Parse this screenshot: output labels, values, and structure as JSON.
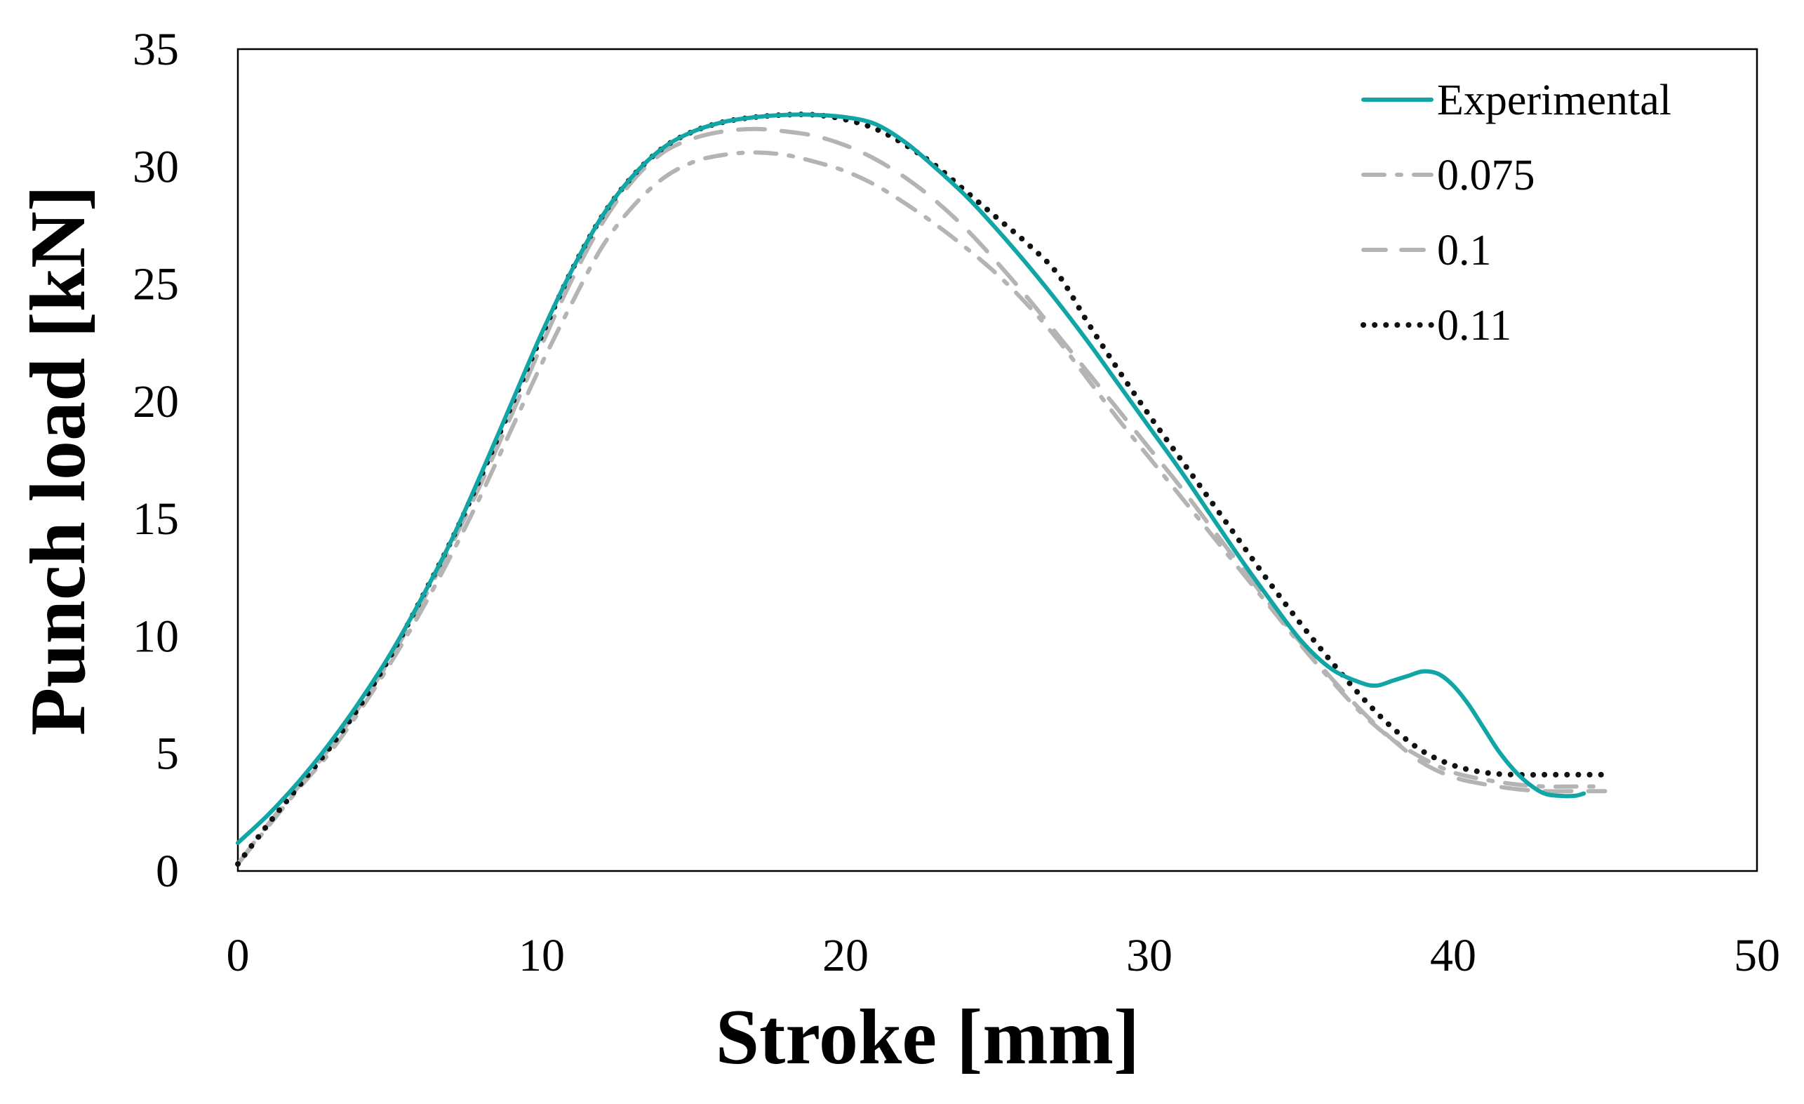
{
  "chart_data": {
    "type": "line",
    "title": "",
    "xlabel": "Stroke [mm]",
    "ylabel": "Punch load [kN]",
    "xlim": [
      0,
      50
    ],
    "ylim": [
      0,
      35
    ],
    "xticks": [
      0,
      10,
      20,
      30,
      40,
      50
    ],
    "yticks": [
      0,
      5,
      10,
      15,
      20,
      25,
      30,
      35
    ],
    "grid": false,
    "legend_position": "top-right",
    "series": [
      {
        "name": "Experimental",
        "color": "#12a5a5",
        "style": "solid",
        "x": [
          0,
          1,
          2,
          3,
          4,
          5,
          6,
          7,
          8,
          9,
          10,
          11,
          12,
          13,
          14,
          15,
          16,
          17,
          18,
          19,
          20,
          21,
          22,
          23,
          24,
          25,
          26,
          27,
          28,
          29,
          30,
          31,
          32,
          33,
          34,
          35,
          36,
          37,
          37.5,
          38,
          38.5,
          39,
          39.5,
          40,
          40.5,
          41,
          41.5,
          42,
          42.5,
          43,
          43.5,
          44,
          44.3
        ],
        "y": [
          1.2,
          2.4,
          3.8,
          5.4,
          7.2,
          9.2,
          11.5,
          14.0,
          16.9,
          19.9,
          22.9,
          25.6,
          27.9,
          29.6,
          30.8,
          31.5,
          31.9,
          32.1,
          32.2,
          32.2,
          32.1,
          31.8,
          31.0,
          29.9,
          28.7,
          27.3,
          25.8,
          24.2,
          22.5,
          20.7,
          18.9,
          17.1,
          15.2,
          13.3,
          11.5,
          9.8,
          8.6,
          8.0,
          7.9,
          8.1,
          8.3,
          8.5,
          8.4,
          7.9,
          7.1,
          6.1,
          5.1,
          4.3,
          3.7,
          3.3,
          3.2,
          3.2,
          3.3
        ]
      },
      {
        "name": "0.075",
        "color": "#b4b4b4",
        "style": "dashdot",
        "x": [
          0,
          1,
          2,
          3,
          4,
          5,
          6,
          7,
          8,
          9,
          10,
          11,
          12,
          13,
          14,
          15,
          16,
          17,
          18,
          19,
          20,
          21,
          22,
          23,
          24,
          25,
          26,
          27,
          28,
          29,
          30,
          31,
          32,
          33,
          34,
          35,
          36,
          37,
          38,
          39,
          40,
          41,
          42,
          43,
          44,
          45
        ],
        "y": [
          0.3,
          1.9,
          3.5,
          5.0,
          6.8,
          8.8,
          11.0,
          13.4,
          16.0,
          18.8,
          21.6,
          24.2,
          26.6,
          28.3,
          29.5,
          30.2,
          30.5,
          30.6,
          30.5,
          30.2,
          29.8,
          29.2,
          28.4,
          27.5,
          26.5,
          25.4,
          24.1,
          22.6,
          20.9,
          19.2,
          17.6,
          16.0,
          14.4,
          12.8,
          11.2,
          9.6,
          8.1,
          6.7,
          5.6,
          4.8,
          4.2,
          3.9,
          3.7,
          3.6,
          3.6,
          3.6
        ]
      },
      {
        "name": "0.1",
        "color": "#b4b4b4",
        "style": "dashed",
        "x": [
          0,
          1,
          2,
          3,
          4,
          5,
          6,
          7,
          8,
          9,
          10,
          11,
          12,
          13,
          14,
          15,
          16,
          17,
          18,
          19,
          20,
          21,
          22,
          23,
          24,
          25,
          26,
          27,
          28,
          29,
          30,
          31,
          32,
          33,
          34,
          35,
          36,
          37,
          38,
          39,
          40,
          41,
          42,
          43,
          44,
          45
        ],
        "y": [
          0.3,
          2.0,
          3.6,
          5.2,
          7.0,
          9.0,
          11.3,
          13.8,
          16.5,
          19.4,
          22.4,
          25.2,
          27.6,
          29.4,
          30.6,
          31.2,
          31.5,
          31.6,
          31.5,
          31.3,
          30.9,
          30.3,
          29.5,
          28.5,
          27.3,
          25.9,
          24.4,
          22.8,
          21.2,
          19.6,
          18.0,
          16.4,
          14.7,
          13.0,
          11.3,
          9.7,
          8.2,
          6.8,
          5.6,
          4.6,
          4.0,
          3.7,
          3.5,
          3.4,
          3.4,
          3.4
        ]
      },
      {
        "name": "0.11",
        "color": "#111111",
        "style": "dotted",
        "x": [
          0,
          1,
          2,
          3,
          4,
          5,
          6,
          7,
          8,
          9,
          10,
          11,
          12,
          13,
          14,
          15,
          16,
          17,
          18,
          19,
          20,
          21,
          22,
          23,
          24,
          25,
          26,
          27,
          28,
          29,
          30,
          31,
          32,
          33,
          34,
          35,
          36,
          37,
          38,
          39,
          40,
          41,
          42,
          43,
          44,
          45
        ],
        "y": [
          0.3,
          2.0,
          3.6,
          5.2,
          7.0,
          9.1,
          11.5,
          14.0,
          16.8,
          19.8,
          22.8,
          25.6,
          27.9,
          29.6,
          30.8,
          31.5,
          31.9,
          32.1,
          32.2,
          32.2,
          32.0,
          31.6,
          30.9,
          30.0,
          28.9,
          27.8,
          26.7,
          25.4,
          23.3,
          21.3,
          19.4,
          17.6,
          15.8,
          14.0,
          12.2,
          10.5,
          8.9,
          7.4,
          6.1,
          5.1,
          4.5,
          4.2,
          4.1,
          4.1,
          4.1,
          4.1
        ]
      }
    ]
  }
}
